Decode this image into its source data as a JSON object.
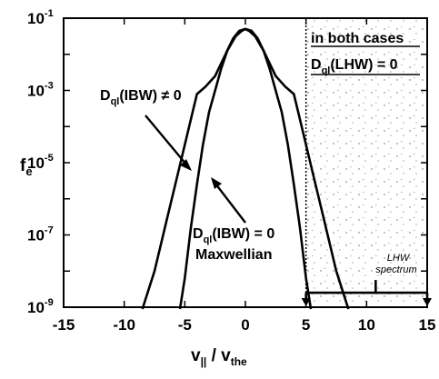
{
  "chart_data": {
    "type": "line",
    "x_range": [
      -15,
      15
    ],
    "y_scale": "log",
    "y_exp_range": [
      -9,
      -1
    ],
    "x_ticks": [
      "-15",
      "-10",
      "-5",
      "0",
      "5",
      "10",
      "15"
    ],
    "x_tick_values": [
      -15,
      -10,
      -5,
      0,
      5,
      10,
      15
    ],
    "y_ticks": [
      {
        "base": "10",
        "exp": "-1",
        "value_exp": -1
      },
      {
        "base": "10",
        "exp": "-3",
        "value_exp": -3
      },
      {
        "base": "10",
        "exp": "-5",
        "value_exp": -5
      },
      {
        "base": "10",
        "exp": "-7",
        "value_exp": -7
      },
      {
        "base": "10",
        "exp": "-9",
        "value_exp": -9
      }
    ],
    "xlabel": {
      "main": "v",
      "sub1": "||",
      "mid": " / v",
      "sub2": "the"
    },
    "ylabel": {
      "main": "f",
      "sub": "e"
    },
    "series": [
      {
        "key": "ibw_on",
        "note": "Dql(IBW) ≠ 0",
        "points_log10": [
          [
            -8.5,
            -9.2
          ],
          [
            -7.5,
            -8.0
          ],
          [
            -6.5,
            -6.6
          ],
          [
            -5.5,
            -5.2
          ],
          [
            -4.5,
            -3.8
          ],
          [
            -4.0,
            -3.1
          ],
          [
            -3.3,
            -2.9
          ],
          [
            -2.5,
            -2.6
          ],
          [
            -1.5,
            -1.9
          ],
          [
            -0.8,
            -1.5
          ],
          [
            -0.3,
            -1.35
          ],
          [
            0.0,
            -1.3
          ],
          [
            0.3,
            -1.35
          ],
          [
            0.8,
            -1.5
          ],
          [
            1.5,
            -1.9
          ],
          [
            2.5,
            -2.6
          ],
          [
            3.3,
            -2.9
          ],
          [
            4.0,
            -3.1
          ],
          [
            4.5,
            -3.8
          ],
          [
            5.5,
            -5.2
          ],
          [
            6.5,
            -6.6
          ],
          [
            7.5,
            -8.0
          ],
          [
            8.5,
            -9.2
          ]
        ]
      },
      {
        "key": "maxwellian",
        "note": "Dql(IBW) = 0 Maxwellian",
        "points_log10": [
          [
            -5.4,
            -9.2
          ],
          [
            -5.0,
            -8.2
          ],
          [
            -4.5,
            -6.8
          ],
          [
            -4.0,
            -5.6
          ],
          [
            -3.5,
            -4.5
          ],
          [
            -3.0,
            -3.6
          ],
          [
            -2.5,
            -3.0
          ],
          [
            -2.0,
            -2.4
          ],
          [
            -1.5,
            -1.9
          ],
          [
            -1.0,
            -1.55
          ],
          [
            -0.5,
            -1.35
          ],
          [
            0.0,
            -1.3
          ],
          [
            0.5,
            -1.35
          ],
          [
            1.0,
            -1.55
          ],
          [
            1.5,
            -1.9
          ],
          [
            2.0,
            -2.4
          ],
          [
            2.5,
            -3.0
          ],
          [
            3.0,
            -3.6
          ],
          [
            3.5,
            -4.5
          ],
          [
            4.0,
            -5.6
          ],
          [
            4.5,
            -6.8
          ],
          [
            5.0,
            -8.2
          ],
          [
            5.4,
            -9.2
          ]
        ]
      }
    ],
    "lhw_region_x": [
      5,
      15
    ],
    "lhw_spectrum_y_exp": -8.6,
    "annotations": {
      "both_cases_line1": "in both cases",
      "both_cases_main": "D",
      "both_cases_sub": "ql",
      "both_cases_rest": "(LHW) = 0",
      "ibw_on_main": "D",
      "ibw_on_sub": "ql",
      "ibw_on_rest": "(IBW) ≠ 0",
      "ibw_off_main": "D",
      "ibw_off_sub": "ql",
      "ibw_off_rest": "(IBW) = 0",
      "maxwellian": "Maxwellian",
      "lhw_line1": "LHW",
      "lhw_line2": "spectrum"
    }
  }
}
